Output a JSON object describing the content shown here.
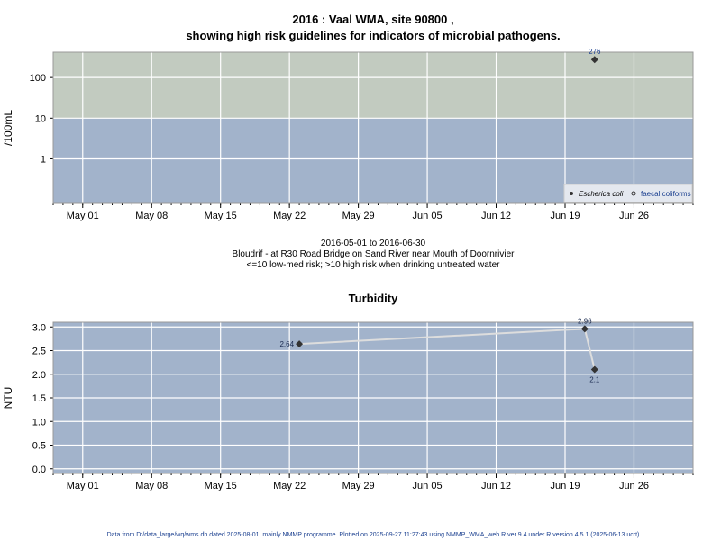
{
  "colors": {
    "panel_low": "#a2b3cb",
    "panel_high": "#c2cbc0",
    "grid": "#ffffff",
    "point": "#333333",
    "line": "#dddddd",
    "frame": "#999999",
    "footer": "#1a3f8f"
  },
  "chart_data": [
    {
      "type": "scatter",
      "title_line1": "2016 : Vaal WMA, site 90800 ,",
      "title_line2": "showing high risk guidelines for indicators of microbial pathogens.",
      "ylabel": "/100mL",
      "y_scale": "log",
      "ylim": [
        0.08,
        420
      ],
      "xlim": [
        "2016-04-28",
        "2016-07-02"
      ],
      "y_ticks": [
        "1",
        "10",
        "100"
      ],
      "x_ticks": [
        "May 01",
        "May 08",
        "May 15",
        "May 22",
        "May 29",
        "Jun 05",
        "Jun 12",
        "Jun 19",
        "Jun 26"
      ],
      "x_tick_dates": [
        "2016-05-01",
        "2016-05-08",
        "2016-05-15",
        "2016-05-22",
        "2016-05-29",
        "2016-06-05",
        "2016-06-12",
        "2016-06-19",
        "2016-06-26"
      ],
      "high_risk_threshold": 10,
      "grid": true,
      "legend_position": "bottom-right",
      "series": [
        {
          "name": "Escherica coli",
          "marker": "filled-diamond",
          "x": [
            "2016-06-22"
          ],
          "y": [
            276
          ],
          "labels": [
            "276"
          ]
        },
        {
          "name": "faecal coliforms",
          "marker": "open-circle",
          "x": [],
          "y": [],
          "labels": []
        }
      ],
      "subtitle_lines": [
        "2016-05-01 to 2016-06-30",
        "Bloudrif - at R30 Road Bridge on Sand River near Mouth of Doornrivier",
        "<=10 low-med risk; >10 high risk when drinking untreated water"
      ]
    },
    {
      "type": "line",
      "title": "Turbidity",
      "ylabel": "NTU",
      "ylim": [
        -0.1,
        3.1
      ],
      "xlim": [
        "2016-04-28",
        "2016-07-02"
      ],
      "y_ticks": [
        "0.0",
        "0.5",
        "1.0",
        "1.5",
        "2.0",
        "2.5",
        "3.0"
      ],
      "x_ticks": [
        "May 01",
        "May 08",
        "May 15",
        "May 22",
        "May 29",
        "Jun 05",
        "Jun 12",
        "Jun 19",
        "Jun 26"
      ],
      "x_tick_dates": [
        "2016-05-01",
        "2016-05-08",
        "2016-05-15",
        "2016-05-22",
        "2016-05-29",
        "2016-06-05",
        "2016-06-12",
        "2016-06-19",
        "2016-06-26"
      ],
      "grid": true,
      "series": [
        {
          "x": [
            "2016-05-23",
            "2016-06-21",
            "2016-06-22"
          ],
          "y": [
            2.64,
            2.96,
            2.1
          ],
          "labels": [
            "2.64",
            "2.96",
            "2.1"
          ]
        }
      ]
    }
  ],
  "footer": "Data from D:/data_large/wq/wms.db dated 2025-08-01, mainly NMMP programme. Plotted on 2025-09-27 11:27:43 using NMMP_WMA_web.R ver 9.4 under R version 4.5.1 (2025-06-13 ucrt)"
}
